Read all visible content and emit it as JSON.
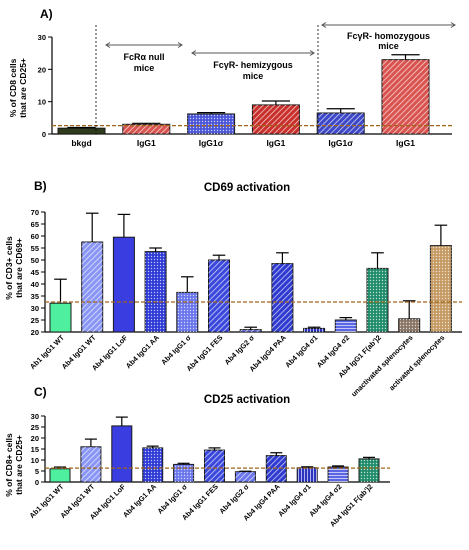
{
  "chart_data": [
    {
      "panel_label": "A)",
      "type": "bar",
      "title": "",
      "xlabel": "",
      "ylabel": [
        "% of CD8 cells",
        "that are CD25+"
      ],
      "ylim": [
        0,
        30
      ],
      "yticks": [
        0,
        10,
        20,
        30
      ],
      "grid": false,
      "categories": [
        "bkgd",
        "IgG1",
        "IgG1σ",
        "IgG1",
        "IgG1σ",
        "IgG1"
      ],
      "values": [
        1.8,
        3.0,
        6.2,
        9.0,
        6.5,
        23.0
      ],
      "errors": [
        0.2,
        0.3,
        0.4,
        1.2,
        1.3,
        1.5
      ],
      "bar_colors": [
        "#2f3b1b",
        "#d9534f",
        "#4a55d8",
        "#c9302c",
        "#3d48c8",
        "#d9534f"
      ],
      "bar_patterns": [
        "solid",
        "hatch",
        "dots",
        "hatch",
        "hatch",
        "hatch"
      ],
      "threshold": 2.6,
      "group_labels": [
        {
          "text": [
            "FcRα null",
            "mice"
          ],
          "from_bar": 1,
          "to_bar": 1
        },
        {
          "text": [
            "FcγR- hemizygous",
            "mice"
          ],
          "from_bar": 2,
          "to_bar": 3
        },
        {
          "text": [
            "FcγR- homozygous",
            "mice"
          ],
          "from_bar": 4,
          "to_bar": 5
        }
      ]
    },
    {
      "panel_label": "B)",
      "type": "bar",
      "title": "CD69 activation",
      "xlabel": "",
      "ylabel": [
        "% of CD3+ cells",
        "that are CD69+"
      ],
      "ylim": [
        20,
        70
      ],
      "yticks": [
        20,
        25,
        30,
        35,
        40,
        45,
        50,
        55,
        60,
        65,
        70
      ],
      "grid": false,
      "categories": [
        "Ab1 IgG1 WT",
        "Ab4 IgG1 WT",
        "Ab4 IgG1 LoF",
        "Ab4 IgG1 AA",
        "Ab4 IgG1 σ",
        "Ab4 IgG1 FES",
        "Ab4 IgG2 σ",
        "Ab4 IgG4 PAA",
        "Ab4 IgG4 σ1",
        "Ab4 IgG4 σ2",
        "Ab4 IgG1 F(ab')2",
        "unactivated splenocytes",
        "activated splenocytes"
      ],
      "values": [
        32,
        57.5,
        59.5,
        53.5,
        36.5,
        50,
        21,
        48.5,
        21.5,
        25,
        46.5,
        25.5,
        56
      ],
      "errors": [
        10,
        12,
        9.5,
        1.5,
        6.5,
        2,
        1,
        4.5,
        0.5,
        1,
        6.5,
        7.5,
        8.5
      ],
      "bar_colors": [
        "#4ef0a0",
        "#8a96f5",
        "#3a3ee0",
        "#2e3ad6",
        "#6a76ec",
        "#3b48dc",
        "#6a76ec",
        "#2f3ad0",
        "#2a34c0",
        "#5a66e4",
        "#1f8c6a",
        "#8a7565",
        "#c59a63"
      ],
      "bar_patterns": [
        "solid",
        "hatch",
        "solid",
        "dots",
        "dots",
        "hatch",
        "hatch",
        "hatch",
        "vlines",
        "hlines",
        "dots",
        "dots",
        "dots"
      ],
      "threshold": 32.5
    },
    {
      "panel_label": "C)",
      "type": "bar",
      "title": "CD25 activation",
      "xlabel": "",
      "ylabel": [
        "% of CD8+ cells",
        "that are CD25+"
      ],
      "ylim": [
        0,
        30
      ],
      "yticks": [
        0,
        5,
        10,
        15,
        20,
        25,
        30
      ],
      "grid": false,
      "categories": [
        "Ab1 IgG1 WT",
        "Ab4 IgG1 WT",
        "Ab4 IgG1 LoF",
        "Ab4 IgG1 AA",
        "Ab4 IgG1 σ",
        "Ab4 IgG1 FES",
        "Ab4 IgG2 σ",
        "Ab4 IgG4 PAA",
        "Ab4 IgG4 σ1",
        "Ab4 IgG4 σ2",
        "Ab4 IgG1 F(ab')2"
      ],
      "values": [
        6,
        16,
        25.5,
        15.5,
        8,
        14.5,
        4.7,
        12,
        6.5,
        6.8,
        10.5
      ],
      "errors": [
        0.8,
        3.5,
        4,
        0.8,
        0.5,
        1,
        0.2,
        1.3,
        0.4,
        0.5,
        0.7
      ],
      "bar_colors": [
        "#4ef0a0",
        "#8a96f5",
        "#3a3ee0",
        "#2e3ad6",
        "#6a76ec",
        "#3b48dc",
        "#6a76ec",
        "#2f3ad0",
        "#2a34c0",
        "#5a66e4",
        "#1f8c6a"
      ],
      "bar_patterns": [
        "solid",
        "hatch",
        "solid",
        "dots",
        "dots",
        "hatch",
        "hatch",
        "hatch",
        "vlines",
        "hlines",
        "dots"
      ],
      "threshold": 6.3
    }
  ]
}
